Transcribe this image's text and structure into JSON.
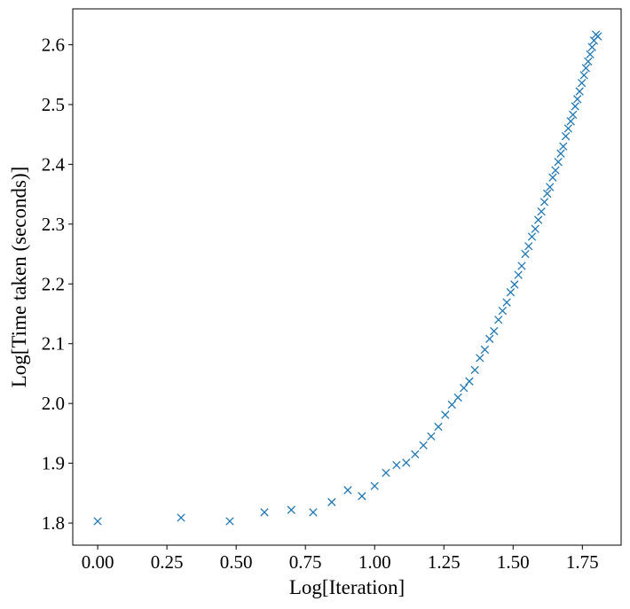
{
  "chart_data": {
    "type": "scatter",
    "xlabel": "Log[Iteration]",
    "ylabel": "Log[Time taken (seconds)]",
    "xlim": [
      -0.09,
      1.89
    ],
    "ylim": [
      1.763,
      2.66
    ],
    "grid": false,
    "marker": "x",
    "color": "#1f77b4",
    "xticks": [
      {
        "value": 0.0,
        "label": "0.00"
      },
      {
        "value": 0.25,
        "label": "0.25"
      },
      {
        "value": 0.5,
        "label": "0.50"
      },
      {
        "value": 0.75,
        "label": "0.75"
      },
      {
        "value": 1.0,
        "label": "1.00"
      },
      {
        "value": 1.25,
        "label": "1.25"
      },
      {
        "value": 1.5,
        "label": "1.50"
      },
      {
        "value": 1.75,
        "label": "1.75"
      }
    ],
    "yticks": [
      {
        "value": 1.8,
        "label": "1.8"
      },
      {
        "value": 1.9,
        "label": "1.9"
      },
      {
        "value": 2.0,
        "label": "2.0"
      },
      {
        "value": 2.1,
        "label": "2.1"
      },
      {
        "value": 2.2,
        "label": "2.2"
      },
      {
        "value": 2.3,
        "label": "2.3"
      },
      {
        "value": 2.4,
        "label": "2.4"
      },
      {
        "value": 2.5,
        "label": "2.5"
      },
      {
        "value": 2.6,
        "label": "2.6"
      }
    ],
    "series": [
      {
        "points": [
          [
            0.0,
            1.803
          ],
          [
            0.301,
            1.809
          ],
          [
            0.477,
            1.803
          ],
          [
            0.602,
            1.818
          ],
          [
            0.699,
            1.822
          ],
          [
            0.778,
            1.818
          ],
          [
            0.845,
            1.835
          ],
          [
            0.903,
            1.855
          ],
          [
            0.954,
            1.845
          ],
          [
            1.0,
            1.862
          ],
          [
            1.041,
            1.884
          ],
          [
            1.079,
            1.897
          ],
          [
            1.114,
            1.901
          ],
          [
            1.146,
            1.915
          ],
          [
            1.176,
            1.93
          ],
          [
            1.204,
            1.945
          ],
          [
            1.23,
            1.961
          ],
          [
            1.255,
            1.981
          ],
          [
            1.279,
            1.998
          ],
          [
            1.301,
            2.01
          ],
          [
            1.322,
            2.026
          ],
          [
            1.342,
            2.037
          ],
          [
            1.362,
            2.056
          ],
          [
            1.38,
            2.076
          ],
          [
            1.398,
            2.09
          ],
          [
            1.415,
            2.108
          ],
          [
            1.431,
            2.121
          ],
          [
            1.447,
            2.14
          ],
          [
            1.462,
            2.155
          ],
          [
            1.477,
            2.169
          ],
          [
            1.491,
            2.186
          ],
          [
            1.505,
            2.199
          ],
          [
            1.519,
            2.215
          ],
          [
            1.531,
            2.23
          ],
          [
            1.544,
            2.25
          ],
          [
            1.556,
            2.263
          ],
          [
            1.568,
            2.279
          ],
          [
            1.58,
            2.292
          ],
          [
            1.591,
            2.307
          ],
          [
            1.602,
            2.321
          ],
          [
            1.613,
            2.337
          ],
          [
            1.623,
            2.351
          ],
          [
            1.633,
            2.362
          ],
          [
            1.643,
            2.378
          ],
          [
            1.653,
            2.39
          ],
          [
            1.663,
            2.404
          ],
          [
            1.672,
            2.418
          ],
          [
            1.681,
            2.43
          ],
          [
            1.69,
            2.447
          ],
          [
            1.699,
            2.46
          ],
          [
            1.708,
            2.472
          ],
          [
            1.716,
            2.483
          ],
          [
            1.724,
            2.497
          ],
          [
            1.732,
            2.509
          ],
          [
            1.74,
            2.522
          ],
          [
            1.748,
            2.536
          ],
          [
            1.756,
            2.549
          ],
          [
            1.763,
            2.561
          ],
          [
            1.771,
            2.572
          ],
          [
            1.778,
            2.584
          ],
          [
            1.785,
            2.596
          ],
          [
            1.792,
            2.607
          ],
          [
            1.799,
            2.617
          ],
          [
            1.806,
            2.614
          ]
        ]
      }
    ]
  }
}
